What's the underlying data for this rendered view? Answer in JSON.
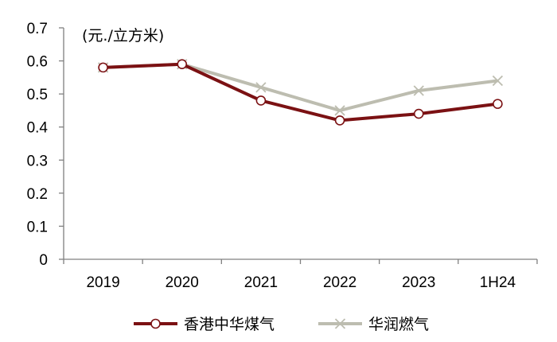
{
  "chart_data": {
    "type": "line",
    "unit_label": "(元./立方米)",
    "categories": [
      "2019",
      "2020",
      "2021",
      "2022",
      "2023",
      "1H24"
    ],
    "ylim": [
      0,
      0.7
    ],
    "y_ticks": [
      "0",
      "0.1",
      "0.2",
      "0.3",
      "0.4",
      "0.5",
      "0.6",
      "0.7"
    ],
    "grid": false,
    "legend_position": "bottom",
    "series": [
      {
        "name": "香港中华煤气",
        "marker": "circle",
        "color": "#7B1113",
        "values": [
          0.58,
          0.59,
          0.48,
          0.42,
          0.44,
          0.47
        ]
      },
      {
        "name": "华润燃气",
        "marker": "x",
        "color": "#BDBDB0",
        "values": [
          0.58,
          0.59,
          0.52,
          0.45,
          0.51,
          0.54
        ]
      }
    ]
  }
}
